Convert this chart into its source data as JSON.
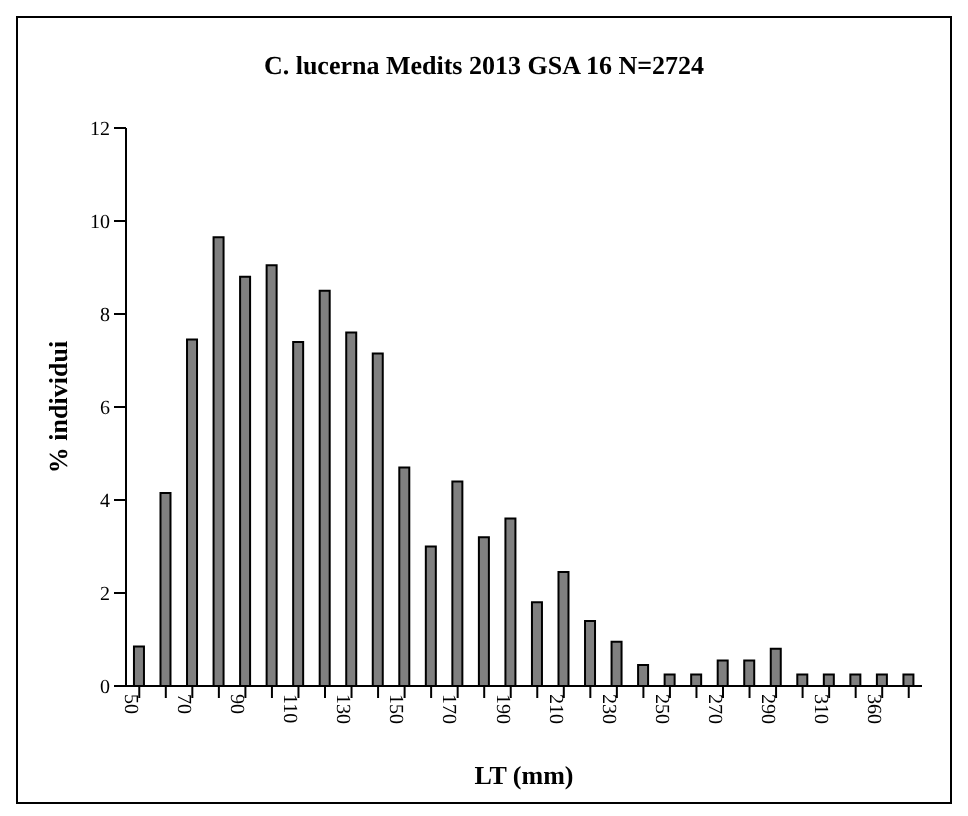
{
  "chart_data": {
    "type": "bar",
    "title": "C. lucerna Medits 2013 GSA 16 N=2724",
    "xlabel": "LT (mm)",
    "ylabel": "% individui",
    "categories": [
      "50",
      null,
      "70",
      null,
      "90",
      null,
      "110",
      null,
      "130",
      null,
      "150",
      null,
      "170",
      null,
      "190",
      null,
      "210",
      null,
      "230",
      null,
      "250",
      null,
      "270",
      null,
      "290",
      null,
      "310",
      null,
      "360",
      null
    ],
    "values": [
      0.85,
      4.15,
      7.45,
      9.65,
      8.8,
      9.05,
      7.4,
      8.5,
      7.6,
      7.15,
      4.7,
      3.0,
      4.4,
      3.2,
      3.6,
      1.8,
      2.45,
      1.4,
      0.95,
      0.45,
      0.25,
      0.25,
      0.55,
      0.55,
      0.8,
      0.25,
      0.25,
      0.25,
      0.25,
      0.25
    ],
    "color": "#808080",
    "ylim": [
      0,
      12
    ],
    "yticks": [
      0,
      2,
      4,
      6,
      8,
      10,
      12
    ],
    "grid": false,
    "legend": false
  }
}
